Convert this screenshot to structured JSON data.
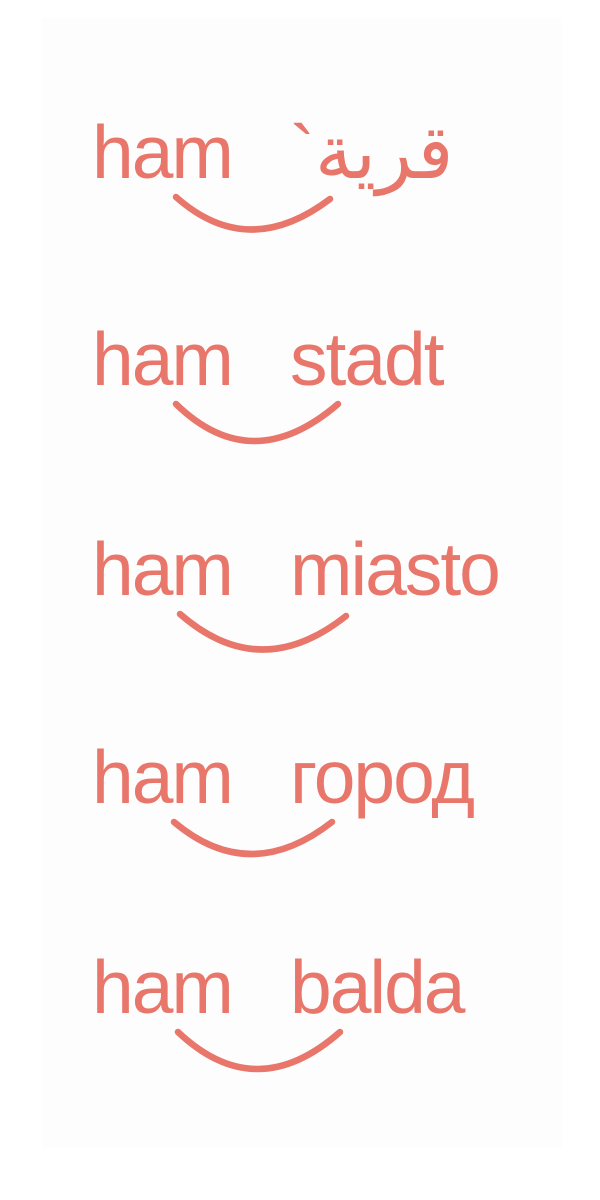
{
  "brand_color": "#e8766a",
  "logos": [
    {
      "left": "ham",
      "right": "قرية`"
    },
    {
      "left": "ham",
      "right": "stadt"
    },
    {
      "left": "ham",
      "right": "miasto"
    },
    {
      "left": "ham",
      "right": "город"
    },
    {
      "left": "ham",
      "right": "balda"
    }
  ]
}
